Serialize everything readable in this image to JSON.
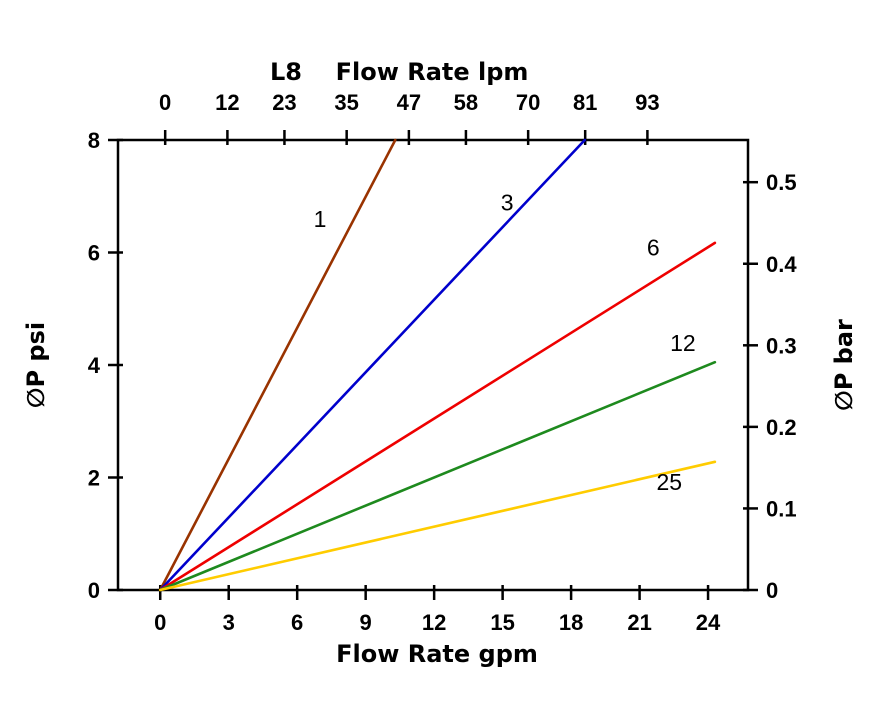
{
  "page": {
    "background": "#ffffff",
    "text_color": "#000000"
  },
  "chart_data": {
    "type": "line",
    "title": "L8",
    "grid": false,
    "legend": "none (inline series labels)",
    "x_top": {
      "label": "Flow Rate lpm",
      "ticks": [
        0,
        12,
        23,
        35,
        47,
        58,
        70,
        81,
        93
      ],
      "range": [
        -9.1,
        112.4
      ]
    },
    "x_bottom": {
      "label": "Flow Rate gpm",
      "ticks": [
        0,
        3,
        6,
        9,
        12,
        15,
        18,
        21,
        24
      ],
      "range": [
        -1.85,
        25.75
      ]
    },
    "y_left": {
      "label": "∅P psi",
      "ticks": [
        0,
        2,
        4,
        6,
        8
      ],
      "range": [
        0,
        8
      ]
    },
    "y_right": {
      "label": "∅P bar",
      "ticks": [
        0,
        0.1,
        0.2,
        0.3,
        0.4,
        0.5
      ],
      "psi_per_bar": 14.5
    },
    "series": [
      {
        "name": "1",
        "color": "#993300",
        "points": [
          [
            0,
            0
          ],
          [
            10.3,
            8.0
          ]
        ],
        "label_pos": [
          7.0,
          6.45
        ]
      },
      {
        "name": "3",
        "color": "#0000CC",
        "points": [
          [
            0,
            0
          ],
          [
            18.6,
            8.0
          ]
        ],
        "label_pos": [
          15.2,
          6.75
        ]
      },
      {
        "name": "6",
        "color": "#EE0000",
        "points": [
          [
            0,
            0
          ],
          [
            24.3,
            6.17
          ]
        ],
        "label_pos": [
          21.6,
          5.95
        ]
      },
      {
        "name": "12",
        "color": "#1E8A1E",
        "points": [
          [
            0,
            0
          ],
          [
            24.3,
            4.05
          ]
        ],
        "label_pos": [
          22.9,
          4.25
        ]
      },
      {
        "name": "25",
        "color": "#FFCC00",
        "points": [
          [
            0,
            0
          ],
          [
            24.3,
            2.28
          ]
        ],
        "label_pos": [
          22.3,
          1.78
        ]
      }
    ]
  }
}
